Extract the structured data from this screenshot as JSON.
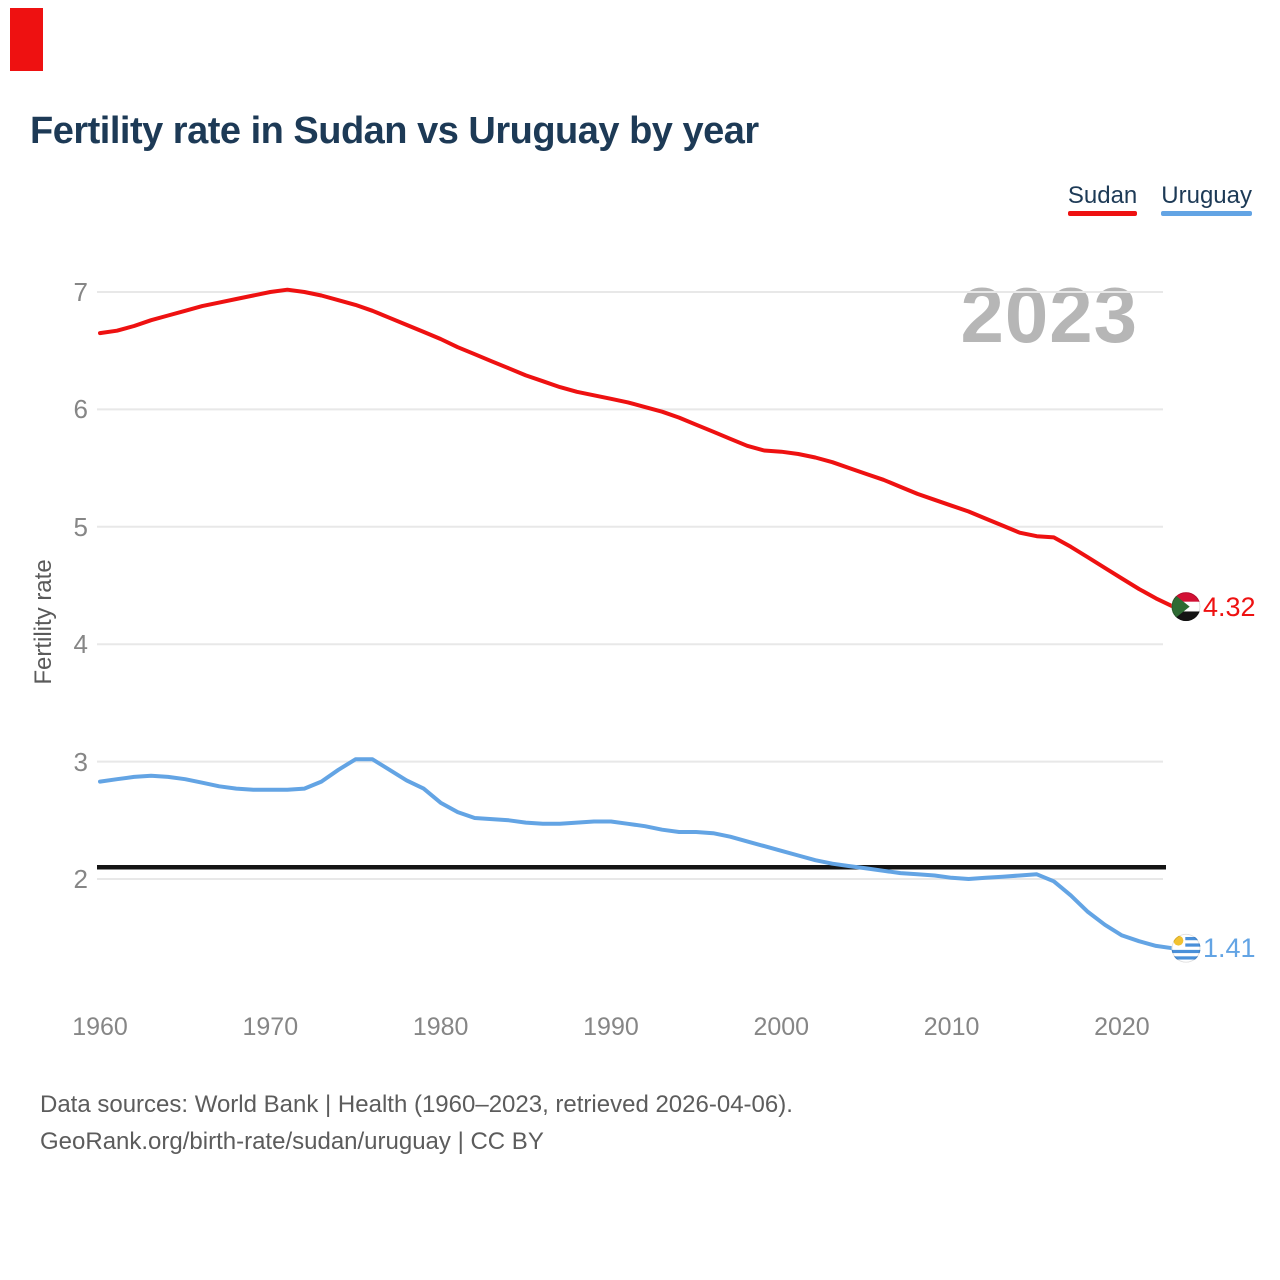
{
  "page": {
    "title": "Fertility rate in Sudan vs Uruguay by year",
    "watermark_year": "2023",
    "footer_line1": "Data sources: World Bank | Health (1960–2023, retrieved 2026-04-06).",
    "footer_line2": "GeoRank.org/birth-rate/sudan/uruguay | CC BY"
  },
  "legend": [
    {
      "label": "Sudan",
      "color": "#ee1111"
    },
    {
      "label": "Uruguay",
      "color": "#63a4e4"
    }
  ],
  "theme": {
    "title_text": "#1d3a56",
    "tick_text": "#868686",
    "axis_title_text": "#5a5a5a",
    "footer_text": "#5c5c5c",
    "gridline": "#e8e8e8",
    "watermark_text": "#b6b6b6",
    "corner_mark": "#ee1111",
    "reference_line": "#141414"
  },
  "chart_data": {
    "type": "line",
    "title": "Fertility rate in Sudan vs Uruguay by year",
    "xlabel": "",
    "ylabel": "Fertility rate",
    "x_ticks": [
      1960,
      1970,
      1980,
      1990,
      2000,
      2010,
      2020
    ],
    "y_ticks": [
      7,
      6,
      5,
      4,
      3,
      2
    ],
    "ylim": [
      1.3,
      7.2
    ],
    "grid": "horizontal",
    "legend_position": "top-right",
    "watermark": "2023",
    "reference_line": {
      "value": 2.1,
      "color": "#141414"
    },
    "years": [
      1960,
      1961,
      1962,
      1963,
      1964,
      1965,
      1966,
      1967,
      1968,
      1969,
      1970,
      1971,
      1972,
      1973,
      1974,
      1975,
      1976,
      1977,
      1978,
      1979,
      1980,
      1981,
      1982,
      1983,
      1984,
      1985,
      1986,
      1987,
      1988,
      1989,
      1990,
      1991,
      1992,
      1993,
      1994,
      1995,
      1996,
      1997,
      1998,
      1999,
      2000,
      2001,
      2002,
      2003,
      2004,
      2005,
      2006,
      2007,
      2008,
      2009,
      2010,
      2011,
      2012,
      2013,
      2014,
      2015,
      2016,
      2017,
      2018,
      2019,
      2020,
      2021,
      2022,
      2023
    ],
    "series": [
      {
        "name": "Sudan",
        "color": "#ee1111",
        "end_label": "4.32",
        "end_value": 4.32,
        "flag": "sudan-flag",
        "values": [
          6.65,
          6.67,
          6.71,
          6.76,
          6.8,
          6.84,
          6.88,
          6.91,
          6.94,
          6.97,
          7.0,
          7.02,
          7.0,
          6.97,
          6.93,
          6.89,
          6.84,
          6.78,
          6.72,
          6.66,
          6.6,
          6.53,
          6.47,
          6.41,
          6.35,
          6.29,
          6.24,
          6.19,
          6.15,
          6.12,
          6.09,
          6.06,
          6.02,
          5.98,
          5.93,
          5.87,
          5.81,
          5.75,
          5.69,
          5.65,
          5.64,
          5.62,
          5.59,
          5.55,
          5.5,
          5.45,
          5.4,
          5.34,
          5.28,
          5.23,
          5.18,
          5.13,
          5.07,
          5.01,
          4.95,
          4.92,
          4.91,
          4.83,
          4.74,
          4.65,
          4.56,
          4.47,
          4.39,
          4.32
        ]
      },
      {
        "name": "Uruguay",
        "color": "#63a4e4",
        "end_label": "1.41",
        "end_value": 1.41,
        "flag": "uruguay-flag",
        "values": [
          2.83,
          2.85,
          2.87,
          2.88,
          2.87,
          2.85,
          2.82,
          2.79,
          2.77,
          2.76,
          2.76,
          2.76,
          2.77,
          2.83,
          2.93,
          3.02,
          3.02,
          2.93,
          2.84,
          2.77,
          2.65,
          2.57,
          2.52,
          2.51,
          2.5,
          2.48,
          2.47,
          2.47,
          2.48,
          2.49,
          2.49,
          2.47,
          2.45,
          2.42,
          2.4,
          2.4,
          2.39,
          2.36,
          2.32,
          2.28,
          2.24,
          2.2,
          2.16,
          2.13,
          2.11,
          2.09,
          2.07,
          2.05,
          2.04,
          2.03,
          2.01,
          2.0,
          2.01,
          2.02,
          2.03,
          2.04,
          1.98,
          1.86,
          1.72,
          1.61,
          1.52,
          1.47,
          1.43,
          1.41
        ]
      }
    ]
  }
}
